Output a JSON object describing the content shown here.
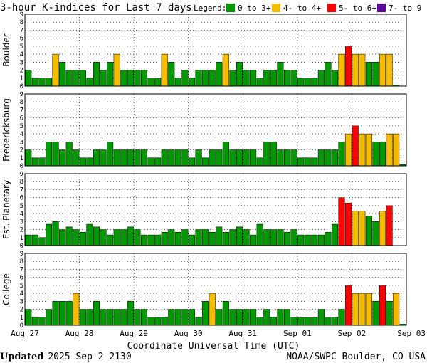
{
  "header": {
    "title": "3-hour K-indices for Last 7 days",
    "legend_label": "Legend:",
    "legend": [
      {
        "label": "0 to 3+",
        "color": "#009900"
      },
      {
        "label": "4- to 4+",
        "color": "#f5bc00"
      },
      {
        "label": "5- to 6+",
        "color": "#ff0000"
      },
      {
        "label": "7- to 9",
        "color": "#5a0a96"
      }
    ]
  },
  "footer": {
    "updated_label": "Updated",
    "updated_value": "2025 Sep  2 2130",
    "credit": "NOAA/SWPC Boulder, CO USA"
  },
  "chart_data": {
    "type": "bar",
    "xlabel": "Coordinate Universal Time (UTC)",
    "x_ticks": [
      "Aug 27",
      "Aug 28",
      "Aug 29",
      "Aug 30",
      "Aug 31",
      "Sep 01",
      "Sep 02",
      "Sep 03"
    ],
    "y_ticks": [
      "0",
      "1",
      "2",
      "3",
      "4",
      "5",
      "6",
      "7",
      "8",
      "9"
    ],
    "ylim": [
      0,
      9
    ],
    "grid": true,
    "bins_per_day": 8,
    "days": 7,
    "color_thresholds": [
      {
        "max": 3.99,
        "color": "#009900"
      },
      {
        "max": 4.99,
        "color": "#f5bc00"
      },
      {
        "max": 6.99,
        "color": "#ff0000"
      },
      {
        "max": 9,
        "color": "#5a0a96"
      }
    ],
    "panels": [
      {
        "name": "Boulder",
        "values": [
          2,
          1,
          1,
          1,
          4,
          3,
          2,
          2,
          2,
          1,
          3,
          2,
          3,
          4,
          2,
          2,
          2,
          2,
          1,
          1,
          4,
          3,
          1,
          2,
          1,
          2,
          2,
          2,
          3,
          4,
          2,
          3,
          2,
          2,
          1,
          2,
          2,
          3,
          2,
          2,
          1,
          1,
          1,
          2,
          3,
          2,
          4,
          5,
          4,
          4,
          3,
          3,
          4,
          4,
          0,
          null
        ]
      },
      {
        "name": "Fredericksburg",
        "values": [
          2,
          1,
          1,
          3,
          3,
          2,
          3,
          2,
          1,
          1,
          2,
          2,
          3,
          2,
          2,
          2,
          2,
          2,
          1,
          1,
          2,
          2,
          2,
          2,
          1,
          2,
          1,
          2,
          2,
          3,
          2,
          2,
          2,
          2,
          1,
          3,
          3,
          2,
          2,
          2,
          1,
          1,
          1,
          2,
          2,
          2,
          3,
          4,
          5,
          4,
          4,
          3,
          3,
          4,
          4,
          0
        ]
      },
      {
        "name": "Est. Planetary",
        "values": [
          1.33,
          1.33,
          1,
          2.67,
          3,
          2,
          2.33,
          2,
          1.67,
          2.67,
          2.33,
          2,
          1.33,
          2,
          2,
          2.33,
          2,
          1.33,
          1.33,
          1.33,
          1.67,
          2,
          1.67,
          2,
          1.33,
          2,
          2,
          1.67,
          2.33,
          1.67,
          2,
          2.33,
          2,
          1.33,
          2.67,
          2,
          2,
          2,
          1.67,
          2,
          1.33,
          1.33,
          1.33,
          1.33,
          1.67,
          2.67,
          6,
          5.33,
          4.33,
          4.33,
          3.67,
          3,
          4.33,
          5,
          null,
          null
        ]
      },
      {
        "name": "College",
        "values": [
          2,
          1,
          1,
          2,
          3,
          3,
          3,
          4,
          2,
          2,
          3,
          2,
          2,
          2,
          2,
          3,
          2,
          2,
          1,
          1,
          1,
          2,
          2,
          2,
          2,
          1,
          3,
          4,
          2,
          3,
          2,
          2,
          2,
          2,
          1,
          2,
          1,
          2,
          2,
          1,
          1,
          1,
          1,
          2,
          1,
          1,
          2,
          5,
          4,
          4,
          4,
          3,
          5,
          3,
          4,
          0
        ]
      }
    ]
  }
}
